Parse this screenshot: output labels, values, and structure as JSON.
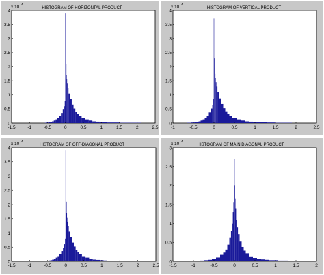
{
  "chart_data": [
    {
      "type": "bar",
      "title": "HISTOGRAM OF HORIZONTAL PRODUCT",
      "multiplier": "x 10",
      "multiplier_exp": "4",
      "xlim": [
        -1.5,
        2.5
      ],
      "ylim": [
        0,
        4
      ],
      "xticks": [
        "-1.5",
        "-1",
        "-0.5",
        "0",
        "0.5",
        "1",
        "1.5",
        "2",
        "2.5"
      ],
      "yticks": [
        "0",
        "0.5",
        "1",
        "1.5",
        "2",
        "2.5",
        "3",
        "3.5",
        "4"
      ],
      "x": [
        -0.6,
        -0.55,
        -0.5,
        -0.45,
        -0.4,
        -0.35,
        -0.3,
        -0.25,
        -0.2,
        -0.15,
        -0.1,
        -0.05,
        -0.03,
        -0.01,
        0.0,
        0.01,
        0.02,
        0.03,
        0.04,
        0.05,
        0.07,
        0.1,
        0.15,
        0.2,
        0.25,
        0.3,
        0.35,
        0.4,
        0.5,
        0.6,
        0.7,
        0.8,
        0.9,
        1.0,
        1.1,
        1.2,
        1.4,
        1.6,
        1.8,
        2.0,
        2.2
      ],
      "values": [
        0.0,
        0.01,
        0.02,
        0.03,
        0.04,
        0.06,
        0.09,
        0.13,
        0.18,
        0.26,
        0.36,
        0.48,
        0.6,
        0.8,
        3.9,
        3.0,
        2.1,
        1.7,
        1.55,
        1.4,
        1.25,
        1.05,
        0.85,
        0.66,
        0.52,
        0.41,
        0.33,
        0.26,
        0.18,
        0.13,
        0.09,
        0.06,
        0.05,
        0.04,
        0.03,
        0.02,
        0.02,
        0.01,
        0.01,
        0.01,
        0.0
      ]
    },
    {
      "type": "bar",
      "title": "HISTOGRAM OF VERTICAL PRODUCT",
      "multiplier": "x 10",
      "multiplier_exp": "4",
      "xlim": [
        -1,
        2.5
      ],
      "ylim": [
        0,
        4
      ],
      "xticks": [
        "-1",
        "-0.5",
        "0",
        "0.5",
        "1",
        "1.5",
        "2",
        "2.5"
      ],
      "yticks": [
        "0",
        "0.5",
        "1",
        "1.5",
        "2",
        "2.5",
        "3",
        "3.5",
        "4"
      ],
      "x": [
        -0.7,
        -0.6,
        -0.5,
        -0.45,
        -0.4,
        -0.35,
        -0.3,
        -0.25,
        -0.2,
        -0.15,
        -0.1,
        -0.05,
        -0.03,
        -0.01,
        0.0,
        0.01,
        0.02,
        0.03,
        0.04,
        0.05,
        0.07,
        0.1,
        0.15,
        0.2,
        0.25,
        0.3,
        0.35,
        0.4,
        0.5,
        0.6,
        0.7,
        0.8,
        0.9,
        1.0,
        1.2,
        1.4,
        1.6,
        1.8,
        2.0
      ],
      "values": [
        0.0,
        0.01,
        0.02,
        0.03,
        0.04,
        0.06,
        0.09,
        0.13,
        0.18,
        0.26,
        0.38,
        0.52,
        0.65,
        0.85,
        3.7,
        2.3,
        1.95,
        1.75,
        1.6,
        1.45,
        1.3,
        1.1,
        0.88,
        0.68,
        0.53,
        0.42,
        0.33,
        0.26,
        0.18,
        0.13,
        0.09,
        0.06,
        0.05,
        0.04,
        0.03,
        0.02,
        0.01,
        0.01,
        0.0
      ]
    },
    {
      "type": "bar",
      "title": "HISTOGRAM OF OFF-DIAGONAL PRODUCT",
      "multiplier": "x 10",
      "multiplier_exp": "4",
      "xlim": [
        -1.5,
        2.5
      ],
      "ylim": [
        0,
        4
      ],
      "xticks": [
        "-1.5",
        "-1",
        "-0.5",
        "0",
        "0.5",
        "1",
        "1.5",
        "2",
        "2.5"
      ],
      "yticks": [
        "0",
        "0.5",
        "1",
        "1.5",
        "2",
        "2.5",
        "3",
        "3.5",
        "4"
      ],
      "x": [
        -0.6,
        -0.55,
        -0.5,
        -0.45,
        -0.4,
        -0.35,
        -0.3,
        -0.25,
        -0.2,
        -0.15,
        -0.1,
        -0.05,
        -0.03,
        -0.01,
        0.0,
        0.01,
        0.02,
        0.03,
        0.04,
        0.05,
        0.07,
        0.1,
        0.15,
        0.2,
        0.25,
        0.3,
        0.35,
        0.4,
        0.5,
        0.6,
        0.7,
        0.8,
        0.9,
        1.0,
        1.1,
        1.2,
        1.4,
        1.6,
        1.8,
        2.0,
        2.2
      ],
      "values": [
        0.0,
        0.01,
        0.02,
        0.03,
        0.04,
        0.06,
        0.09,
        0.13,
        0.18,
        0.26,
        0.36,
        0.48,
        0.6,
        0.8,
        3.9,
        3.0,
        2.1,
        1.7,
        1.55,
        1.4,
        1.25,
        1.05,
        0.85,
        0.66,
        0.52,
        0.41,
        0.33,
        0.26,
        0.18,
        0.13,
        0.09,
        0.06,
        0.05,
        0.04,
        0.03,
        0.02,
        0.02,
        0.01,
        0.01,
        0.01,
        0.0
      ]
    },
    {
      "type": "bar",
      "title": "HISTOGRAM OF MAIN DIAGONAL PRODUCT",
      "multiplier": "x 10",
      "multiplier_exp": "4",
      "xlim": [
        -1.5,
        2
      ],
      "ylim": [
        0,
        3
      ],
      "xticks": [
        "-1.5",
        "-1",
        "-0.5",
        "0",
        "0.5",
        "1",
        "1.5",
        "2"
      ],
      "yticks": [
        "0",
        "0.5",
        "1",
        "1.5",
        "2",
        "2.5",
        "3"
      ],
      "x": [
        -1.0,
        -0.9,
        -0.8,
        -0.7,
        -0.6,
        -0.5,
        -0.4,
        -0.3,
        -0.25,
        -0.2,
        -0.15,
        -0.1,
        -0.07,
        -0.05,
        -0.03,
        -0.02,
        -0.01,
        0.0,
        0.01,
        0.02,
        0.03,
        0.05,
        0.07,
        0.1,
        0.15,
        0.2,
        0.25,
        0.3,
        0.4,
        0.5,
        0.6,
        0.7,
        0.8,
        0.9,
        1.0,
        1.1,
        1.2,
        1.4,
        1.6
      ],
      "values": [
        0.0,
        0.01,
        0.02,
        0.03,
        0.04,
        0.06,
        0.1,
        0.17,
        0.23,
        0.31,
        0.44,
        0.62,
        0.8,
        1.0,
        1.3,
        1.55,
        1.9,
        2.7,
        2.0,
        1.65,
        1.4,
        1.1,
        0.9,
        0.72,
        0.52,
        0.38,
        0.28,
        0.21,
        0.13,
        0.09,
        0.06,
        0.05,
        0.04,
        0.03,
        0.03,
        0.02,
        0.02,
        0.01,
        0.0
      ]
    }
  ]
}
